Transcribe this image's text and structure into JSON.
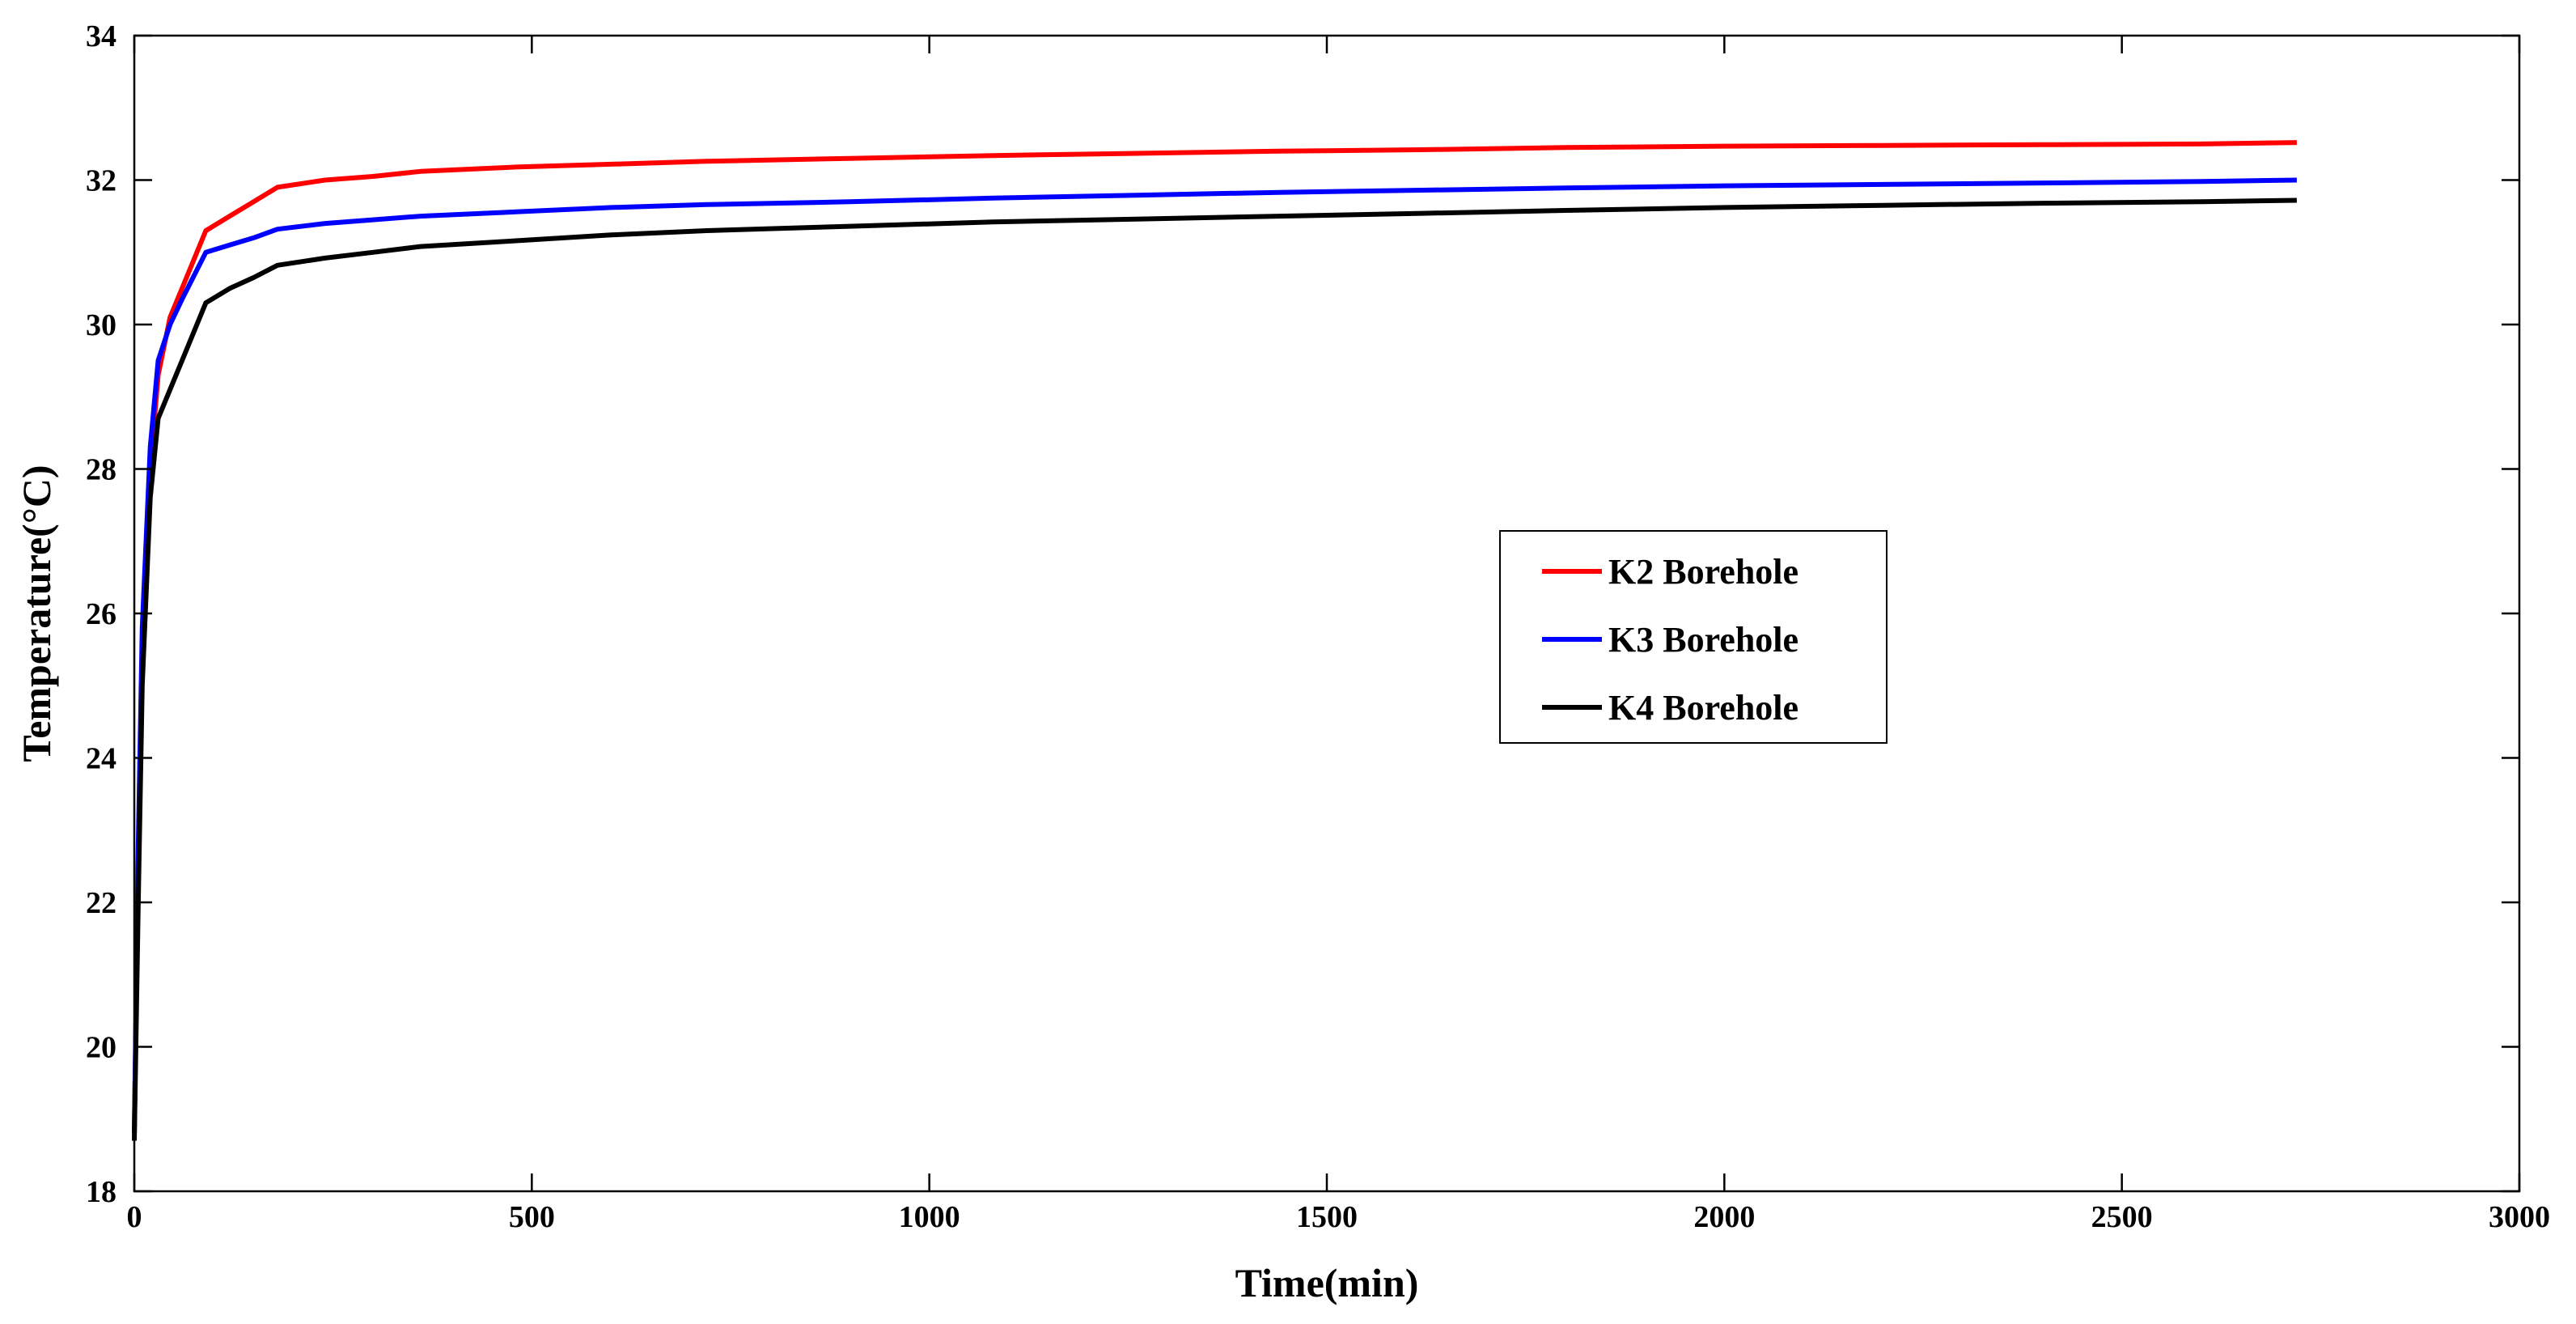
{
  "chart_data": {
    "type": "line",
    "title": "",
    "xlabel": "Time(min)",
    "ylabel": "Temperature(°C)",
    "xlim": [
      0,
      3000
    ],
    "ylim": [
      18,
      34
    ],
    "xticks": [
      0,
      500,
      1000,
      1500,
      2000,
      2500,
      3000
    ],
    "yticks": [
      18,
      20,
      22,
      24,
      26,
      28,
      30,
      32,
      34
    ],
    "grid": false,
    "legend_position": "center-right",
    "series": [
      {
        "name": "K2 Borehole",
        "color": "#ff0000",
        "x": [
          0,
          5,
          10,
          20,
          30,
          45,
          60,
          90,
          120,
          150,
          180,
          240,
          300,
          360,
          480,
          600,
          720,
          900,
          1080,
          1260,
          1440,
          1620,
          1800,
          2000,
          2200,
          2400,
          2600,
          2720
        ],
        "y": [
          18.8,
          22.5,
          25.5,
          28.0,
          29.3,
          30.1,
          30.5,
          31.3,
          31.5,
          31.7,
          31.9,
          32.0,
          32.05,
          32.12,
          32.18,
          32.22,
          32.26,
          32.3,
          32.34,
          32.37,
          32.4,
          32.42,
          32.45,
          32.47,
          32.48,
          32.49,
          32.5,
          32.52
        ]
      },
      {
        "name": "K3 Borehole",
        "color": "#0000ff",
        "x": [
          0,
          5,
          10,
          20,
          30,
          45,
          60,
          90,
          120,
          150,
          180,
          240,
          300,
          360,
          480,
          600,
          720,
          900,
          1080,
          1260,
          1440,
          1620,
          1800,
          2000,
          2200,
          2400,
          2600,
          2720
        ],
        "y": [
          18.8,
          22.8,
          25.8,
          28.3,
          29.5,
          30.0,
          30.35,
          31.0,
          31.1,
          31.2,
          31.32,
          31.4,
          31.45,
          31.5,
          31.56,
          31.62,
          31.66,
          31.7,
          31.75,
          31.79,
          31.83,
          31.86,
          31.89,
          31.92,
          31.94,
          31.96,
          31.98,
          32.0
        ]
      },
      {
        "name": "K4 Borehole",
        "color": "#000000",
        "x": [
          0,
          5,
          10,
          20,
          30,
          45,
          60,
          90,
          120,
          150,
          180,
          240,
          300,
          360,
          480,
          600,
          720,
          900,
          1080,
          1260,
          1440,
          1620,
          1800,
          2000,
          2200,
          2400,
          2600,
          2720
        ],
        "y": [
          18.7,
          22.0,
          25.0,
          27.6,
          28.7,
          29.1,
          29.5,
          30.3,
          30.5,
          30.65,
          30.82,
          30.92,
          31.0,
          31.08,
          31.16,
          31.24,
          31.3,
          31.36,
          31.42,
          31.46,
          31.5,
          31.54,
          31.58,
          31.62,
          31.65,
          31.68,
          31.7,
          31.72
        ]
      }
    ]
  }
}
